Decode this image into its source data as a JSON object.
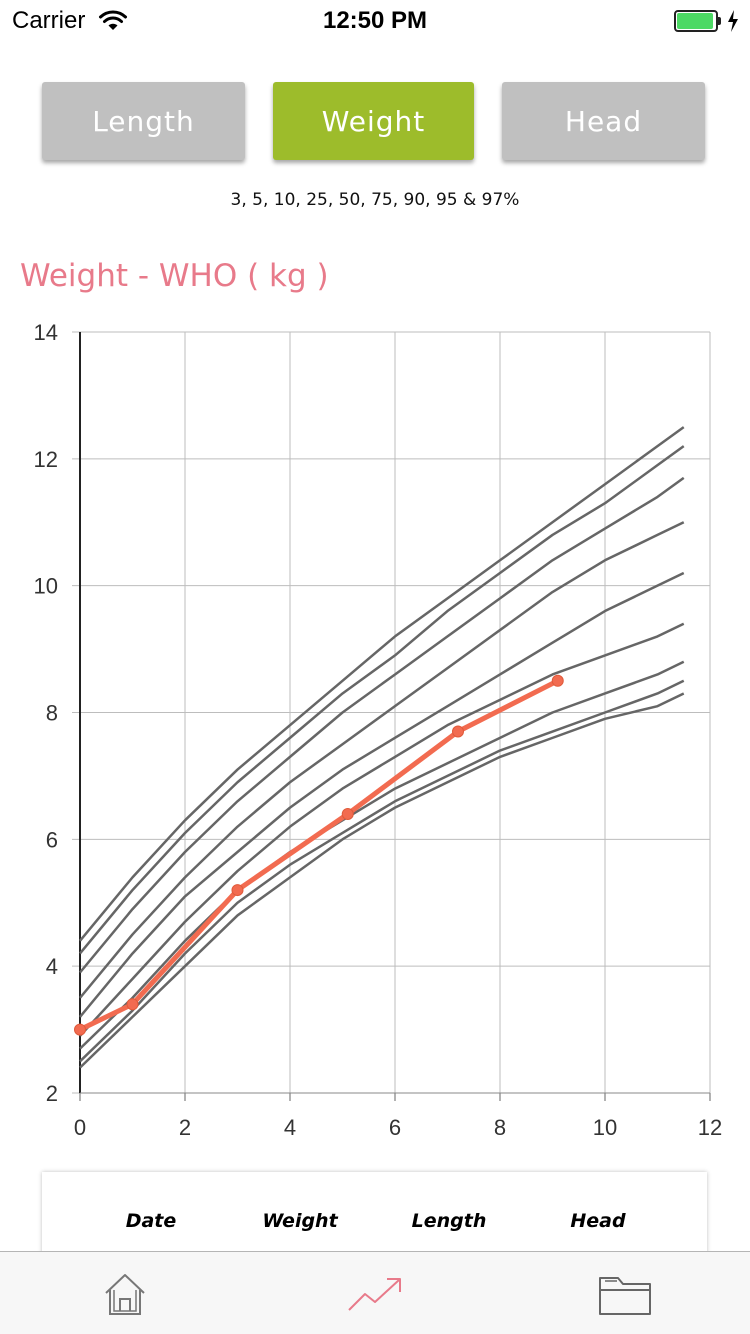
{
  "status_bar": {
    "carrier": "Carrier",
    "time": "12:50 PM"
  },
  "tabs": [
    {
      "label": "Length",
      "active": false
    },
    {
      "label": "Weight",
      "active": true
    },
    {
      "label": "Head",
      "active": false
    }
  ],
  "percentiles_text": "3, 5, 10, 25, 50, 75, 90, 95 & 97%",
  "chart_title": "Weight - WHO ( kg )",
  "colors": {
    "active_tab": "#9dbc2b",
    "inactive_tab": "#c0c0c0",
    "title": "#e87a8a",
    "child_line": "#f26b50",
    "percentile_line": "#666666"
  },
  "chart_data": {
    "type": "line",
    "title": "Weight - WHO ( kg )",
    "xlabel": "",
    "ylabel": "",
    "xlim": [
      0,
      12
    ],
    "ylim": [
      2,
      14
    ],
    "x_ticks": [
      "0",
      "2",
      "4",
      "6",
      "8",
      "10",
      "12"
    ],
    "y_ticks": [
      "2",
      "4",
      "6",
      "8",
      "10",
      "12",
      "14"
    ],
    "grid": true,
    "percentile_x": [
      0,
      1,
      2,
      3,
      4,
      5,
      6,
      7,
      8,
      9,
      10,
      11,
      11.5
    ],
    "percentile_series": [
      {
        "values": [
          2.4,
          3.2,
          4.0,
          4.8,
          5.4,
          6.0,
          6.5,
          6.9,
          7.3,
          7.6,
          7.9,
          8.1,
          8.3
        ]
      },
      {
        "values": [
          2.5,
          3.3,
          4.2,
          5.0,
          5.6,
          6.1,
          6.6,
          7.0,
          7.4,
          7.7,
          8.0,
          8.3,
          8.5
        ]
      },
      {
        "values": [
          2.7,
          3.5,
          4.4,
          5.2,
          5.8,
          6.3,
          6.8,
          7.2,
          7.6,
          8.0,
          8.3,
          8.6,
          8.8
        ]
      },
      {
        "values": [
          2.9,
          3.8,
          4.7,
          5.5,
          6.2,
          6.8,
          7.3,
          7.8,
          8.2,
          8.6,
          8.9,
          9.2,
          9.4
        ]
      },
      {
        "values": [
          3.2,
          4.2,
          5.1,
          5.8,
          6.5,
          7.1,
          7.6,
          8.1,
          8.6,
          9.1,
          9.6,
          10.0,
          10.2
        ]
      },
      {
        "values": [
          3.5,
          4.5,
          5.4,
          6.2,
          6.9,
          7.5,
          8.1,
          8.7,
          9.3,
          9.9,
          10.4,
          10.8,
          11.0
        ]
      },
      {
        "values": [
          3.9,
          4.9,
          5.8,
          6.6,
          7.3,
          8.0,
          8.6,
          9.2,
          9.8,
          10.4,
          10.9,
          11.4,
          11.7
        ]
      },
      {
        "values": [
          4.2,
          5.2,
          6.1,
          6.9,
          7.6,
          8.3,
          8.9,
          9.6,
          10.2,
          10.8,
          11.3,
          11.9,
          12.2
        ]
      },
      {
        "values": [
          4.4,
          5.4,
          6.3,
          7.1,
          7.8,
          8.5,
          9.2,
          9.8,
          10.4,
          11.0,
          11.6,
          12.2,
          12.5
        ]
      }
    ],
    "series": [
      {
        "x": [
          0,
          1,
          3,
          5.1,
          7.2,
          9.1
        ],
        "values": [
          3.0,
          3.4,
          5.2,
          6.4,
          7.7,
          8.5
        ]
      }
    ]
  },
  "table": {
    "headers": [
      "Date",
      "Weight",
      "Length",
      "Head"
    ]
  },
  "tab_bar": [
    {
      "icon": "home-icon"
    },
    {
      "icon": "trending-up-icon",
      "active": true
    },
    {
      "icon": "folder-icon"
    }
  ]
}
